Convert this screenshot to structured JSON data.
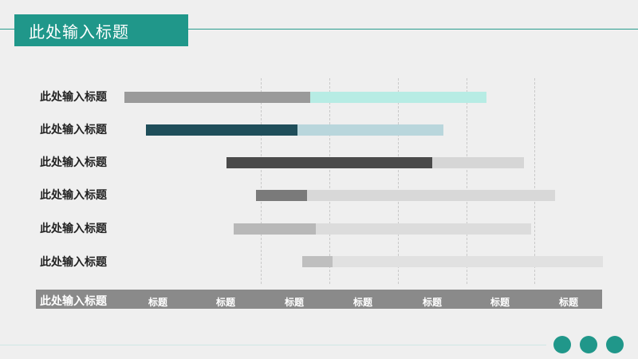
{
  "slide": {
    "title": "此处输入标题",
    "accent": "#20978a"
  },
  "rows": [
    {
      "label": "此处输入标题"
    },
    {
      "label": "此处输入标题"
    },
    {
      "label": "此处输入标题"
    },
    {
      "label": "此处输入标题"
    },
    {
      "label": "此处输入标题"
    },
    {
      "label": "此处输入标题"
    }
  ],
  "axis": {
    "title": "此处输入标题",
    "ticks": [
      "标题",
      "标题",
      "标题",
      "标题",
      "标题",
      "标题",
      "标题"
    ]
  },
  "chart_data": {
    "type": "bar",
    "orientation": "horizontal-stacked",
    "categories": [
      "此处输入标题",
      "此处输入标题",
      "此处输入标题",
      "此处输入标题",
      "此处输入标题",
      "此处输入标题"
    ],
    "x_ticks": [
      "标题",
      "标题",
      "标题",
      "标题",
      "标题",
      "标题",
      "标题"
    ],
    "xlim": [
      0,
      7
    ],
    "series": [
      {
        "start": [
          0.0,
          0.32,
          1.49,
          1.92,
          1.6,
          2.6
        ],
        "done_end": [
          2.72,
          2.53,
          4.5,
          2.67,
          2.8,
          3.05
        ],
        "end": [
          5.3,
          4.67,
          5.85,
          6.3,
          5.95,
          7.0
        ],
        "done_colors": [
          "#9a9a9a",
          "#1f4e5a",
          "#4a4a4a",
          "#7a7a7a",
          "#b8b8b8",
          "#bfbfbf"
        ],
        "remaining_colors": [
          "#b7ece4",
          "#b9d6dc",
          "#d6d6d6",
          "#d8d8d8",
          "#dcdcdc",
          "#e1e1e1"
        ]
      }
    ],
    "grid": true
  }
}
